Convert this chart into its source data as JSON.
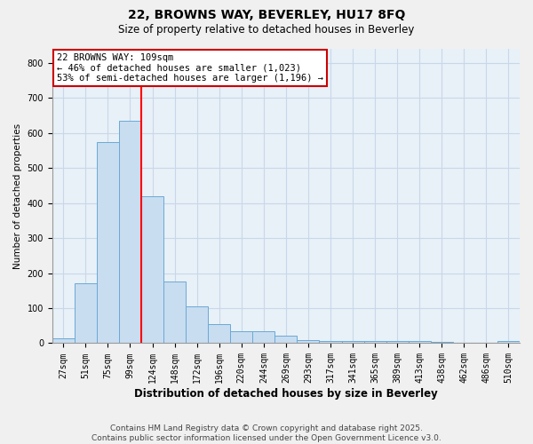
{
  "title1": "22, BROWNS WAY, BEVERLEY, HU17 8FQ",
  "title2": "Size of property relative to detached houses in Beverley",
  "xlabel": "Distribution of detached houses by size in Beverley",
  "ylabel": "Number of detached properties",
  "categories": [
    "27sqm",
    "51sqm",
    "75sqm",
    "99sqm",
    "124sqm",
    "148sqm",
    "172sqm",
    "196sqm",
    "220sqm",
    "244sqm",
    "269sqm",
    "293sqm",
    "317sqm",
    "341sqm",
    "365sqm",
    "389sqm",
    "413sqm",
    "438sqm",
    "462sqm",
    "486sqm",
    "510sqm"
  ],
  "values": [
    15,
    170,
    575,
    635,
    420,
    175,
    105,
    55,
    35,
    33,
    22,
    10,
    7,
    5,
    5,
    5,
    5,
    3,
    2,
    2,
    5
  ],
  "bar_color": "#c8ddf0",
  "bar_edge_color": "#6aaad4",
  "red_line_x": 3.5,
  "annotation_line1": "22 BROWNS WAY: 109sqm",
  "annotation_line2": "← 46% of detached houses are smaller (1,023)",
  "annotation_line3": "53% of semi-detached houses are larger (1,196) →",
  "annotation_box_facecolor": "#ffffff",
  "annotation_box_edgecolor": "#cc0000",
  "footer1": "Contains HM Land Registry data © Crown copyright and database right 2025.",
  "footer2": "Contains public sector information licensed under the Open Government Licence v3.0.",
  "ylim": [
    0,
    840
  ],
  "yticks": [
    0,
    100,
    200,
    300,
    400,
    500,
    600,
    700,
    800
  ],
  "grid_color": "#c8d8e8",
  "plot_bg_color": "#e8f0f8",
  "fig_bg_color": "#f0f0f0",
  "title1_fontsize": 10,
  "title2_fontsize": 8.5,
  "xlabel_fontsize": 8.5,
  "ylabel_fontsize": 7.5,
  "tick_fontsize": 7,
  "annotation_fontsize": 7.5,
  "footer_fontsize": 6.5
}
